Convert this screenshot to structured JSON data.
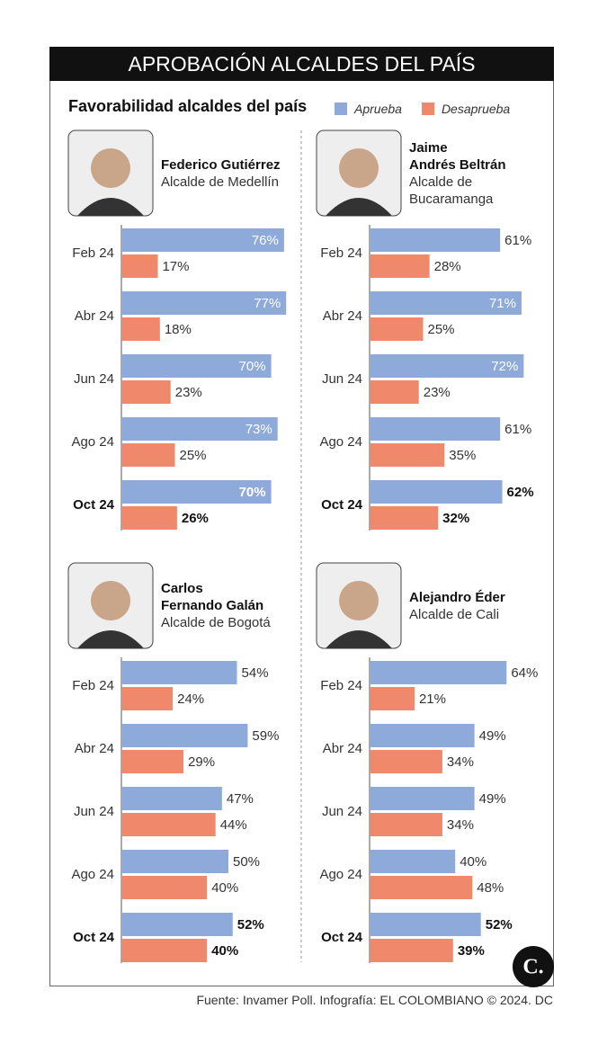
{
  "title": "APROBACIÓN ALCALDES DEL PAÍS",
  "subtitle": "Favorabilidad alcaldes del país",
  "legend": [
    {
      "name": "Aprueba",
      "color": "#8eaadb"
    },
    {
      "name": "Desaprueba",
      "color": "#f0896b"
    }
  ],
  "source": "Fuente: Invamer Poll. Infografía: EL COLOMBIANO © 2024. DC",
  "logo": "C.",
  "chart_data": [
    {
      "type": "bar",
      "title": "Federico Gutiérrez",
      "subtitle": "Alcalde de Medellín",
      "categories": [
        "Feb 24",
        "Abr 24",
        "Jun 24",
        "Ago 24",
        "Oct 24"
      ],
      "series": [
        {
          "values": [
            76,
            77,
            70,
            73,
            70
          ],
          "value_labels": [
            "76%",
            "77%",
            "70%",
            "73%",
            "70%"
          ]
        },
        {
          "values": [
            17,
            18,
            23,
            25,
            26
          ],
          "value_labels": [
            "17%",
            "18%",
            "23%",
            "25%",
            "26%"
          ]
        }
      ]
    },
    {
      "type": "bar",
      "title": "Jaime\nAndrés Beltrán",
      "subtitle": "Alcalde de\nBucaramanga",
      "categories": [
        "Feb 24",
        "Abr 24",
        "Jun 24",
        "Ago 24",
        "Oct 24"
      ],
      "series": [
        {
          "values": [
            61,
            71,
            72,
            61,
            62
          ],
          "value_labels": [
            "61%",
            "71%",
            "72%",
            "61%",
            "62%"
          ]
        },
        {
          "values": [
            28,
            25,
            23,
            35,
            32
          ],
          "value_labels": [
            "28%",
            "25%",
            "23%",
            "35%",
            "32%"
          ]
        }
      ]
    },
    {
      "type": "bar",
      "title": "Carlos\nFernando Galán",
      "subtitle": "Alcalde de Bogotá",
      "categories": [
        "Feb 24",
        "Abr 24",
        "Jun 24",
        "Ago 24",
        "Oct 24"
      ],
      "series": [
        {
          "values": [
            54,
            59,
            47,
            50,
            52
          ],
          "value_labels": [
            "54%",
            "59%",
            "47%",
            "50%",
            "52%"
          ]
        },
        {
          "values": [
            24,
            29,
            44,
            40,
            40
          ],
          "value_labels": [
            "24%",
            "29%",
            "44%",
            "40%",
            "40%"
          ]
        }
      ]
    },
    {
      "type": "bar",
      "title": "Alejandro Éder",
      "subtitle": "Alcalde de Cali",
      "categories": [
        "Feb 24",
        "Abr 24",
        "Jun 24",
        "Ago 24",
        "Oct 24"
      ],
      "series": [
        {
          "values": [
            64,
            49,
            49,
            40,
            52
          ],
          "value_labels": [
            "64%",
            "49%",
            "49%",
            "40%",
            "52%"
          ]
        },
        {
          "values": [
            21,
            34,
            34,
            48,
            39
          ],
          "value_labels": [
            "21%",
            "34%",
            "34%",
            "48%",
            "39%"
          ]
        }
      ]
    }
  ]
}
